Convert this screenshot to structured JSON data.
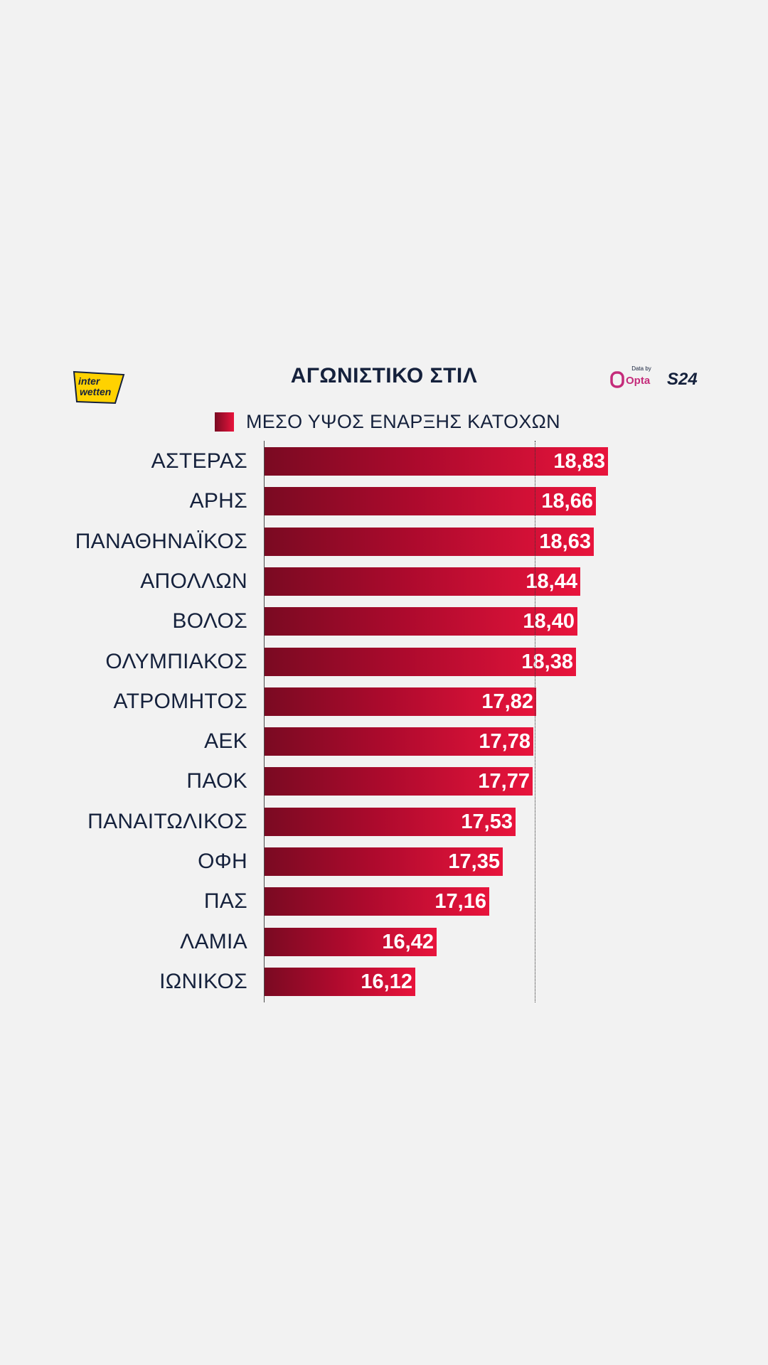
{
  "chart_data": {
    "type": "bar",
    "orientation": "horizontal",
    "title": "ΑΓΩΝΙΣΤΙΚΟ ΣΤΙΛ",
    "legend": "ΜΕΣΟ ΥΨΟΣ ΕΝΑΡΞΗΣ ΚΑΤΟΧΩΝ",
    "categories": [
      "ΑΣΤΕΡΑΣ",
      "ΑΡΗΣ",
      "ΠΑΝΑΘΗΝΑΪΚΟΣ",
      "ΑΠΟΛΛΩΝ",
      "ΒΟΛΟΣ",
      "ΟΛΥΜΠΙΑΚΟΣ",
      "ΑΤΡΟΜΗΤΟΣ",
      "ΑΕΚ",
      "ΠΑΟΚ",
      "ΠΑΝΑΙΤΩΛΙΚΟΣ",
      "ΟΦΗ",
      "ΠΑΣ",
      "ΛΑΜΙΑ",
      "ΙΩΝΙΚΟΣ"
    ],
    "values": [
      18.83,
      18.66,
      18.63,
      18.44,
      18.4,
      18.38,
      17.82,
      17.78,
      17.77,
      17.53,
      17.35,
      17.16,
      16.42,
      16.12
    ],
    "value_labels": [
      "18,83",
      "18,66",
      "18,63",
      "18,44",
      "18,40",
      "18,38",
      "17,82",
      "17,78",
      "17,77",
      "17,53",
      "17,35",
      "17,16",
      "16,42",
      "16,12"
    ],
    "reference_line": 17.8,
    "grid": false
  },
  "logos": {
    "sponsor_top": "inter",
    "sponsor_bottom": "wetten",
    "data_by": "Data by",
    "opta": "Opta",
    "s24": "S24"
  },
  "colors": {
    "bar_start": "#7a0a22",
    "bar_end": "#e8143c",
    "text": "#15213c",
    "background": "#f2f2f2",
    "interwetten_yellow": "#ffd200"
  }
}
